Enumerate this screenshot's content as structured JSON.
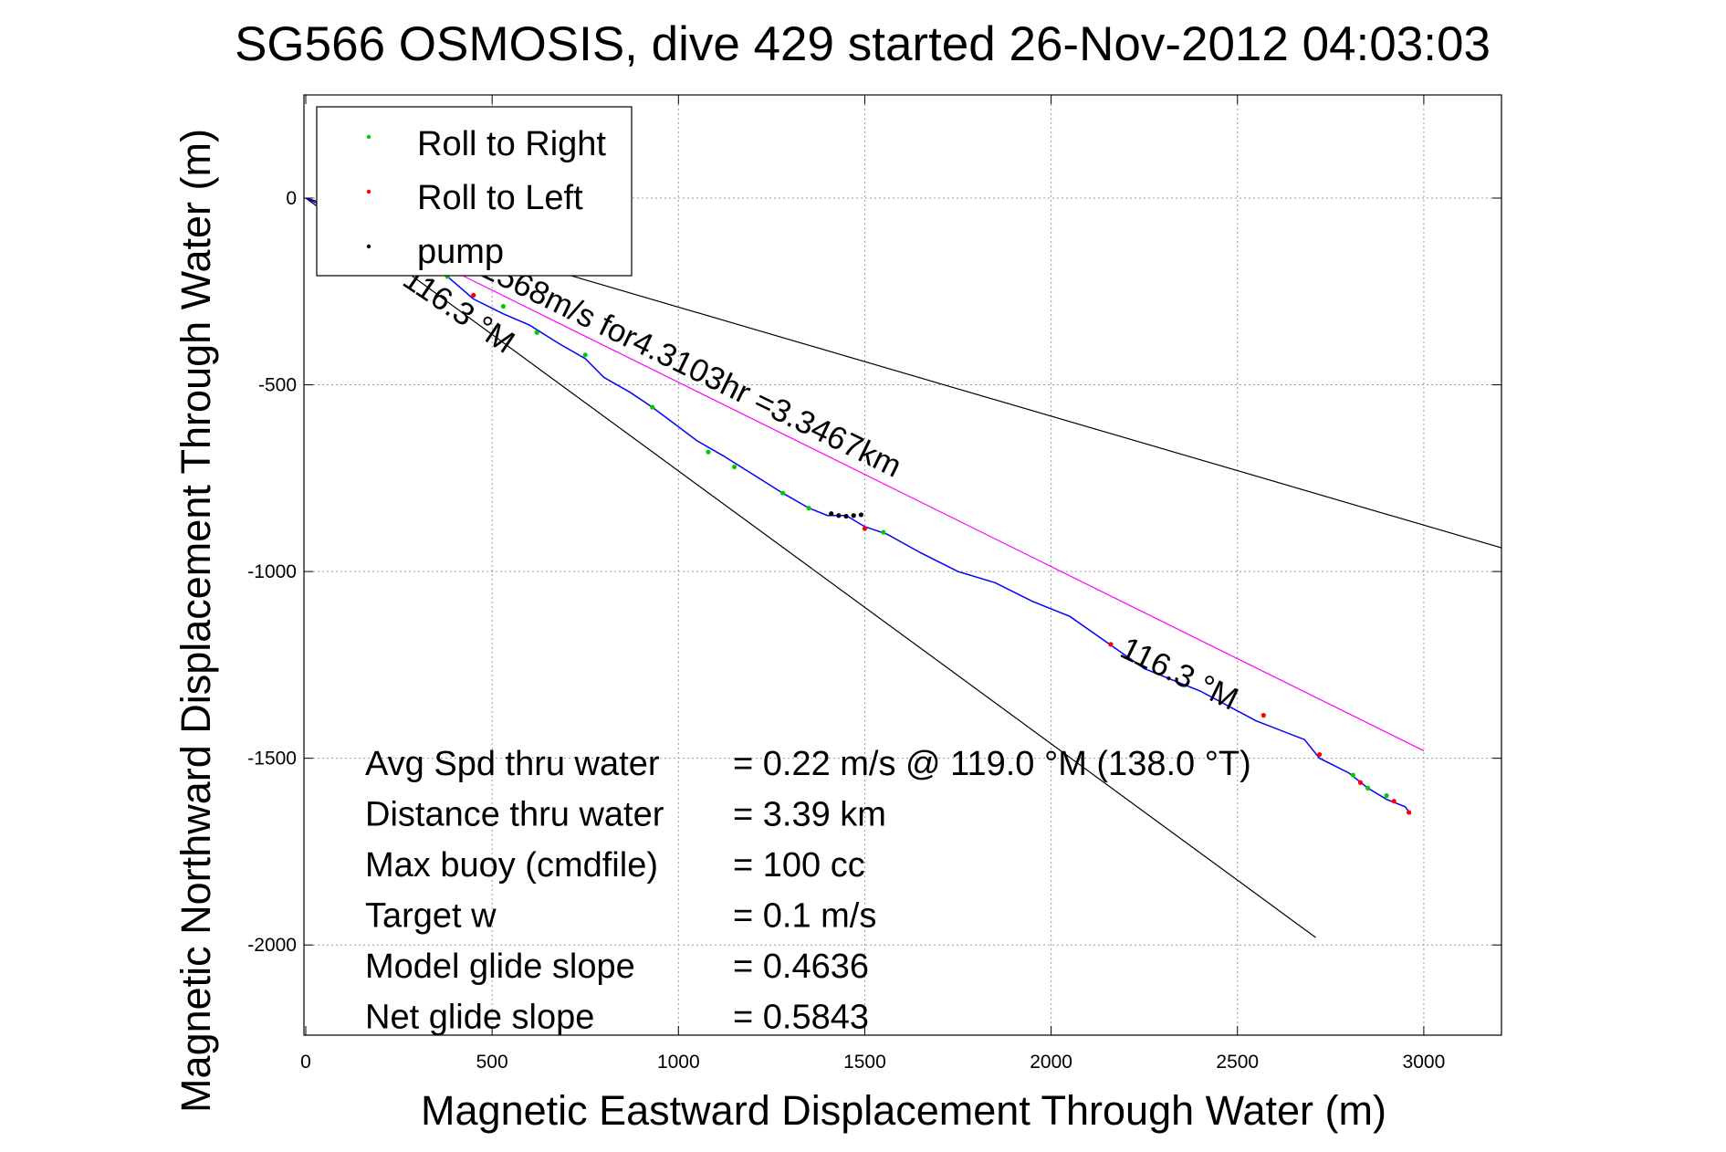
{
  "chart_data": {
    "type": "line",
    "title": "SG566 OSMOSIS, dive 429 started 26-Nov-2012 04:03:03",
    "xlabel": "Magnetic Eastward Displacement Through Water (m)",
    "ylabel": "Magnetic Northward Displacement Through Water (m)",
    "xlim": [
      0,
      3220
    ],
    "ylim": [
      -2250,
      280
    ],
    "xticks": [
      0,
      500,
      1000,
      1500,
      2000,
      2500,
      3000
    ],
    "yticks": [
      0,
      -500,
      -1000,
      -1500,
      -2000
    ],
    "grid": true,
    "legend": {
      "placement": "top-left",
      "entries": [
        {
          "label": "Roll to Right",
          "color": "#00cc00"
        },
        {
          "label": "Roll to Left",
          "color": "#ff0000"
        },
        {
          "label": "pump",
          "color": "#000000"
        }
      ]
    },
    "track": {
      "name": "",
      "color": "#0000ff",
      "x": [
        0,
        150,
        300,
        380,
        450,
        530,
        600,
        680,
        750,
        800,
        870,
        930,
        970,
        1050,
        1120,
        1200,
        1280,
        1350,
        1400,
        1450,
        1500,
        1560,
        1650,
        1750,
        1850,
        1950,
        2050,
        2150,
        2250,
        2400,
        2550,
        2680,
        2720,
        2800,
        2850,
        2900,
        2950,
        2965
      ],
      "y": [
        0,
        -70,
        -150,
        -210,
        -270,
        -310,
        -340,
        -390,
        -430,
        -480,
        -520,
        -560,
        -590,
        -650,
        -690,
        -740,
        -790,
        -830,
        -850,
        -850,
        -880,
        -900,
        -950,
        -1000,
        -1030,
        -1080,
        -1120,
        -1190,
        -1260,
        -1320,
        -1400,
        -1450,
        -1500,
        -1540,
        -1580,
        -1610,
        -1630,
        -1650
      ]
    },
    "roll_right_points": {
      "x": [
        380,
        530,
        620,
        750,
        930,
        1080,
        1150,
        1280,
        1350,
        1550,
        2810,
        2850,
        2900
      ],
      "y": [
        -210,
        -290,
        -360,
        -420,
        -560,
        -680,
        -720,
        -790,
        -830,
        -895,
        -1545,
        -1580,
        -1600
      ]
    },
    "roll_left_points": {
      "x": [
        450,
        1500,
        2160,
        2570,
        2720,
        2830,
        2920,
        2960
      ],
      "y": [
        -260,
        -885,
        -1195,
        -1385,
        -1490,
        -1565,
        -1615,
        -1645
      ]
    },
    "pump_points": {
      "x": [
        1410,
        1430,
        1450,
        1470,
        1490
      ],
      "y": [
        -845,
        -850,
        -852,
        -850,
        -848
      ]
    },
    "reference_lines": [
      {
        "name": "",
        "color": "#ff00ff",
        "x": [
          0,
          3000
        ],
        "y": [
          0,
          -1480
        ]
      },
      {
        "name": "",
        "color": "#000000",
        "x": [
          0,
          2710
        ],
        "y": [
          0,
          -1980
        ]
      },
      {
        "name": "",
        "color": "#000000",
        "x": [
          0,
          3220
        ],
        "y": [
          0,
          -940
        ]
      }
    ],
    "annotations": [
      {
        "text": "0.2568m/s for4.3103hr =3.3467km",
        "x": 400,
        "y": -175,
        "rotation_deg": 26
      },
      {
        "text": "116.3 °M",
        "x": 255,
        "y": -230,
        "rotation_deg": 34
      },
      {
        "text": "116.3 °M",
        "x": 2180,
        "y": -1225,
        "rotation_deg": 26
      }
    ],
    "stats": [
      {
        "label": "Avg Spd thru water",
        "value": "=  0.22 m/s @ 119.0 °M (138.0 °T)"
      },
      {
        "label": "Distance thru water",
        "value": "=  3.39 km"
      },
      {
        "label": "Max buoy (cmdfile)",
        "value": "= 100 cc"
      },
      {
        "label": "Target w",
        "value": "= 0.1 m/s"
      },
      {
        "label": "Model glide slope",
        "value": "= 0.4636"
      },
      {
        "label": "Net glide slope",
        "value": "= 0.5843"
      }
    ]
  }
}
